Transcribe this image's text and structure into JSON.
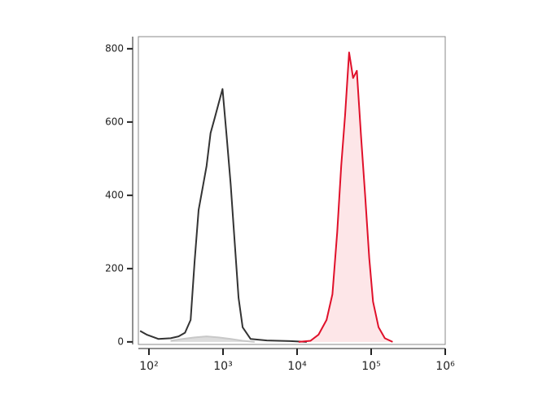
{
  "chart_data": {
    "type": "line",
    "xscale": "log",
    "xlim": [
      72,
      1000000
    ],
    "ylim": [
      -7,
      833
    ],
    "xticks": [
      {
        "value": 100,
        "label": "10²"
      },
      {
        "value": 1000,
        "label": "10³"
      },
      {
        "value": 10000,
        "label": "10⁴"
      },
      {
        "value": 100000,
        "label": "10⁵"
      },
      {
        "value": 1000000,
        "label": "10⁶"
      }
    ],
    "yticks": [
      0,
      200,
      400,
      600,
      800
    ],
    "series": [
      {
        "color": "#c8c8c8",
        "fill": "#dcdcdc",
        "x": [
          196,
          285,
          414,
          600,
          870,
          1270,
          1840,
          2670
        ],
        "values": [
          3,
          8,
          12,
          15,
          12,
          8,
          3,
          0
        ]
      },
      {
        "color": "#333333",
        "x": [
          76,
          93,
          135,
          196,
          251,
          307,
          365,
          414,
          468,
          530,
          600,
          680,
          770,
          870,
          985,
          1120,
          1270,
          1440,
          1620,
          1840,
          2360,
          3900,
          8100,
          13500
        ],
        "values": [
          30,
          20,
          8,
          10,
          15,
          25,
          60,
          220,
          360,
          420,
          480,
          570,
          610,
          650,
          690,
          560,
          430,
          270,
          120,
          40,
          8,
          4,
          2,
          0
        ]
      },
      {
        "color": "#e0102a",
        "fill": "#fde6e8",
        "x": [
          10500,
          15200,
          19500,
          25000,
          30000,
          34800,
          39400,
          44500,
          50400,
          57000,
          64000,
          73000,
          83000,
          94000,
          106000,
          126000,
          153000,
          195000
        ],
        "values": [
          0,
          3,
          20,
          60,
          130,
          300,
          480,
          620,
          790,
          720,
          740,
          560,
          400,
          230,
          110,
          40,
          10,
          0
        ]
      }
    ]
  }
}
